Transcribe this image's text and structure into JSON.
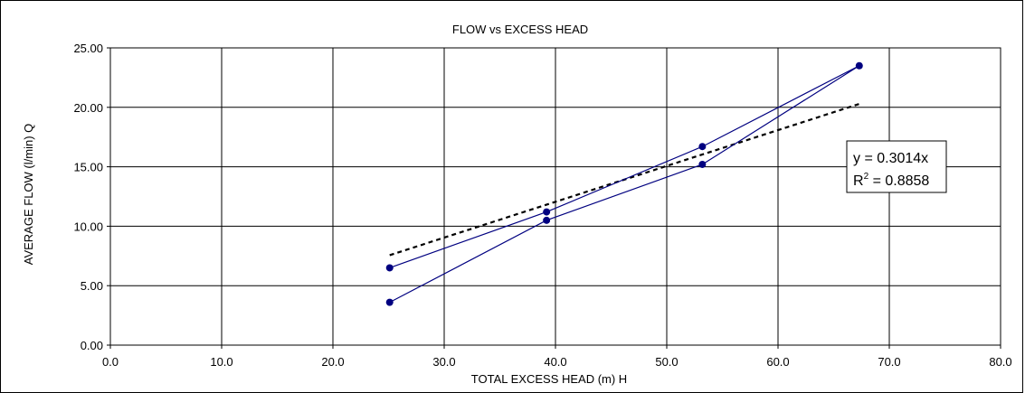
{
  "chart_data": {
    "type": "scatter",
    "title": "FLOW vs EXCESS HEAD",
    "xlabel": "TOTAL EXCESS HEAD (m)  H",
    "ylabel": "AVERAGE FLOW (l/min)  Q",
    "xlim": [
      0,
      80
    ],
    "ylim": [
      0,
      25
    ],
    "x_ticks": [
      "0.0",
      "10.0",
      "20.0",
      "30.0",
      "40.0",
      "50.0",
      "60.0",
      "70.0",
      "80.0"
    ],
    "y_ticks": [
      "0.00",
      "5.00",
      "10.00",
      "15.00",
      "20.00",
      "25.00"
    ],
    "grid": true,
    "legend": "none",
    "series": [
      {
        "style": "line-markers",
        "color": "#000080",
        "points": [
          {
            "x": 25.1,
            "y": 6.5
          },
          {
            "x": 39.2,
            "y": 11.2
          },
          {
            "x": 53.2,
            "y": 16.7
          },
          {
            "x": 67.3,
            "y": 23.5
          },
          {
            "x": 53.2,
            "y": 15.2
          },
          {
            "x": 39.2,
            "y": 10.5
          },
          {
            "x": 25.1,
            "y": 3.6
          }
        ]
      }
    ],
    "trendline": {
      "type": "linear-through-origin",
      "slope": 0.3014,
      "x_range": [
        25.1,
        67.3
      ],
      "style": "dashed",
      "color": "#000000"
    },
    "annotation": {
      "equation": "y = 0.3014x",
      "r2_prefix": "R",
      "r2_sup": "2",
      "r2_value": " = 0.8858",
      "placement": "right of trendline"
    }
  }
}
